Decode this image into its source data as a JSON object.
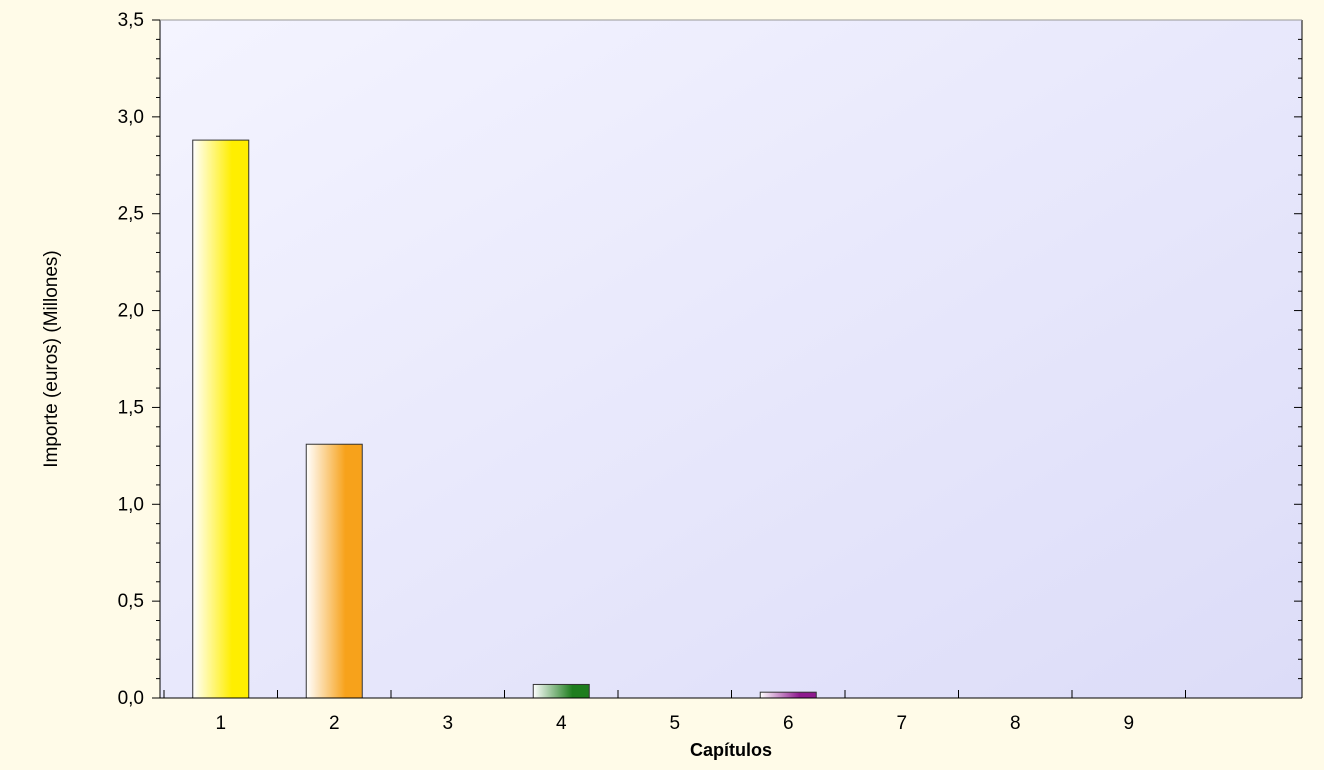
{
  "chart_data": {
    "type": "bar",
    "title": "",
    "xlabel": "Capítulos",
    "ylabel": "Importe (euros) (Millones)",
    "categories": [
      "1",
      "2",
      "3",
      "4",
      "5",
      "6",
      "7",
      "8",
      "9"
    ],
    "values": [
      2.88,
      1.31,
      0,
      0.07,
      0,
      0.03,
      0,
      0,
      0
    ],
    "ylim": [
      0,
      3.5
    ],
    "yticks": [
      "0,0",
      "0,5",
      "1,0",
      "1,5",
      "2,0",
      "2,5",
      "3,0",
      "3,5"
    ],
    "bar_colors": [
      "#ffee00",
      "#f7a21b",
      "#f7a21b",
      "#1e7d1e",
      "#f7a21b",
      "#8e1a8e",
      "#f7a21b",
      "#f7a21b",
      "#f7a21b"
    ],
    "background_color": "#dcdcf8",
    "grid": false,
    "legend": "none"
  }
}
